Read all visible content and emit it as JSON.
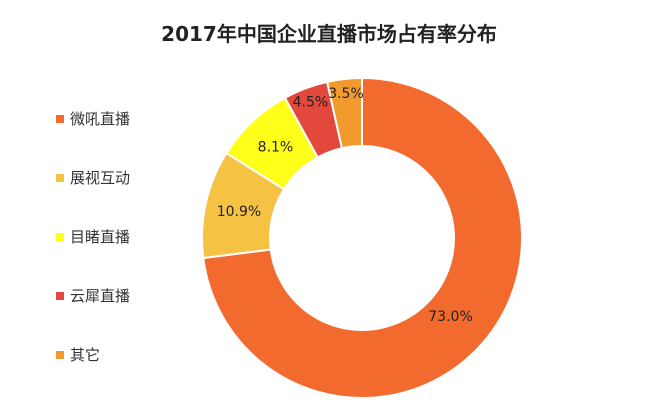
{
  "chart_data": {
    "type": "pie",
    "donut": true,
    "title": "2017年中国企业直播市场占有率分布",
    "categories": [
      "微吼直播",
      "展视互动",
      "目睹直播",
      "云犀直播",
      "其它"
    ],
    "values": [
      73.0,
      10.9,
      8.1,
      4.5,
      3.5
    ],
    "data_labels": [
      "73.0%",
      "10.9%",
      "8.1%",
      "4.5%",
      "3.5%"
    ],
    "colors": [
      "#F26A2E",
      "#F6C243",
      "#FFFF1A",
      "#E2483B",
      "#F39A2F"
    ],
    "legend_position": "left",
    "unit": "%"
  }
}
